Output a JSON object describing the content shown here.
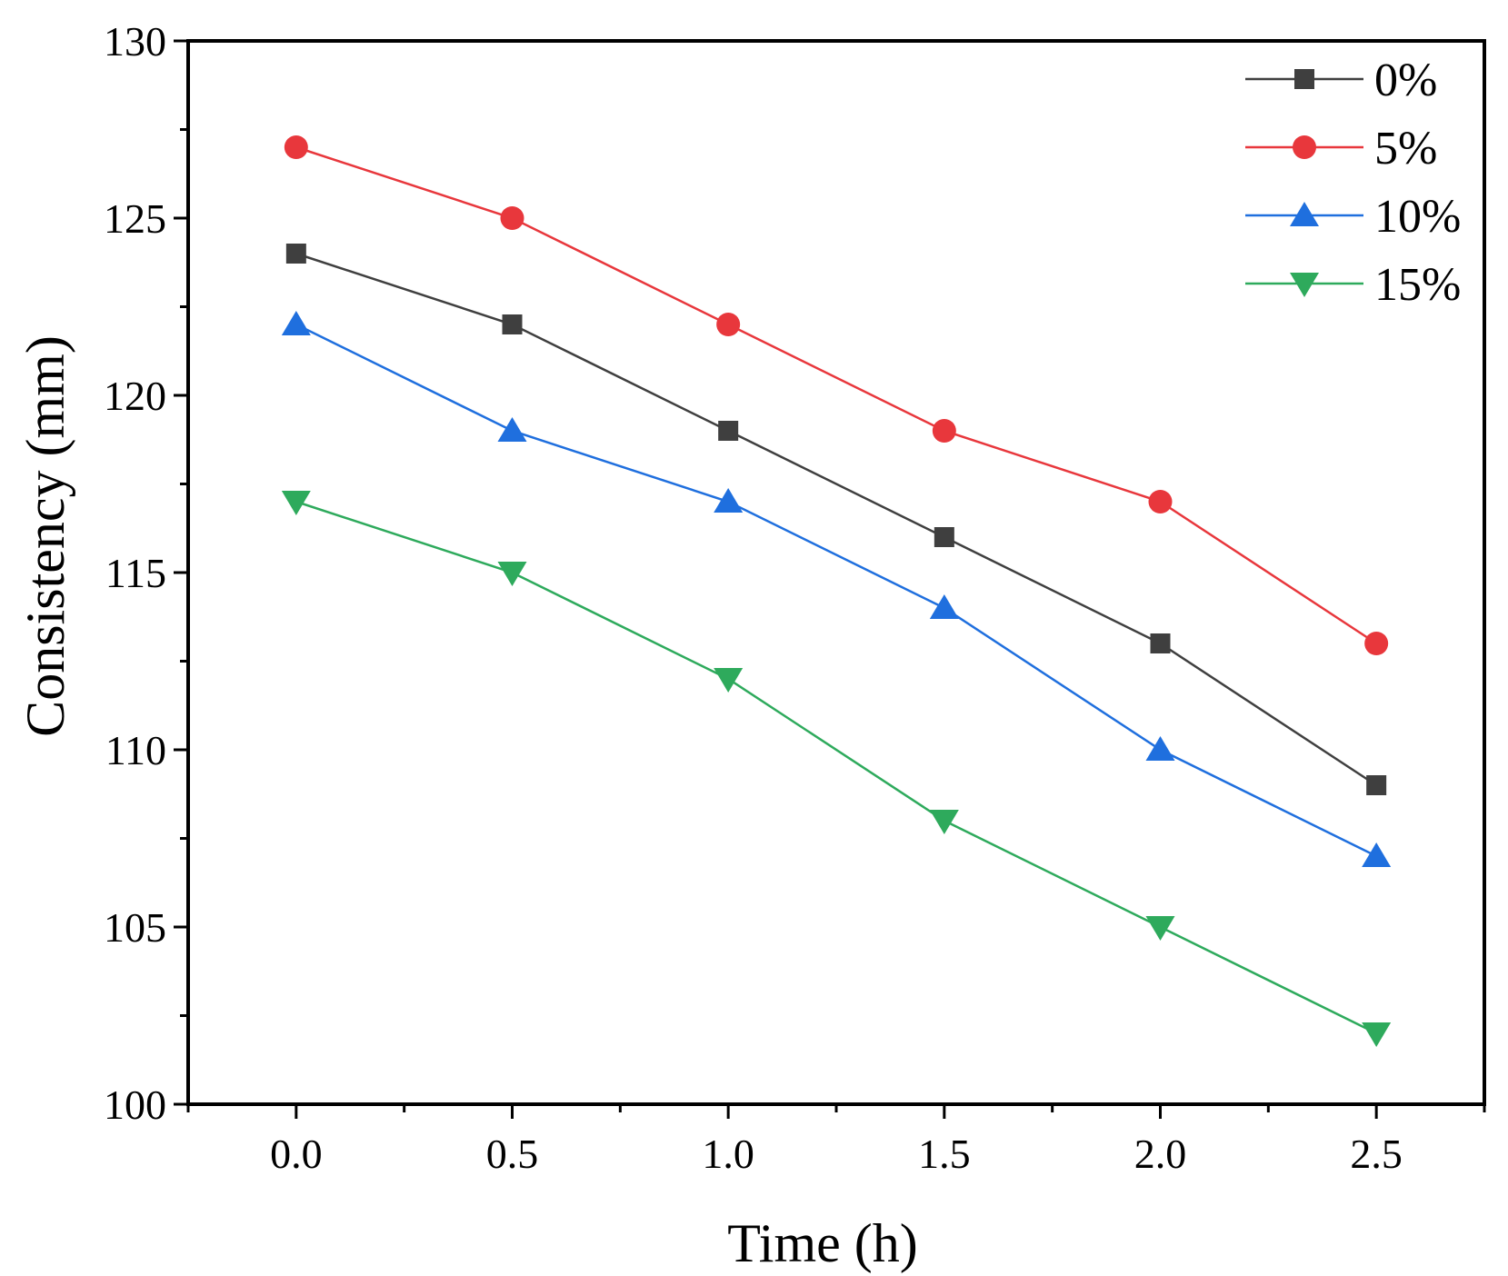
{
  "chart_data": {
    "type": "line",
    "title": "",
    "xlabel": "Time (h)",
    "ylabel": "Consistency (mm)",
    "x": [
      0.0,
      0.5,
      1.0,
      1.5,
      2.0,
      2.5
    ],
    "xlim": [
      -0.25,
      2.75
    ],
    "ylim": [
      100,
      130
    ],
    "xticks": [
      0.0,
      0.5,
      1.0,
      1.5,
      2.0,
      2.5
    ],
    "xtick_labels": [
      "0.0",
      "0.5",
      "1.0",
      "1.5",
      "2.0",
      "2.5"
    ],
    "yticks": [
      100,
      105,
      110,
      115,
      120,
      125,
      130
    ],
    "ytick_labels": [
      "100",
      "105",
      "110",
      "115",
      "120",
      "125",
      "130"
    ],
    "grid": false,
    "legend_position": "top-right",
    "series": [
      {
        "name": "0%",
        "marker": "square",
        "color": "#3f3f3f",
        "values": [
          124,
          122,
          119,
          116,
          113,
          109
        ]
      },
      {
        "name": "5%",
        "marker": "circle",
        "color": "#e8373c",
        "values": [
          127,
          125,
          122,
          119,
          117,
          113
        ]
      },
      {
        "name": "10%",
        "marker": "triangle-up",
        "color": "#1f6fde",
        "values": [
          122,
          119,
          117,
          114,
          110,
          107
        ]
      },
      {
        "name": "15%",
        "marker": "triangle-down",
        "color": "#2eaa5c",
        "values": [
          117,
          115,
          112,
          108,
          105,
          102
        ]
      }
    ]
  }
}
